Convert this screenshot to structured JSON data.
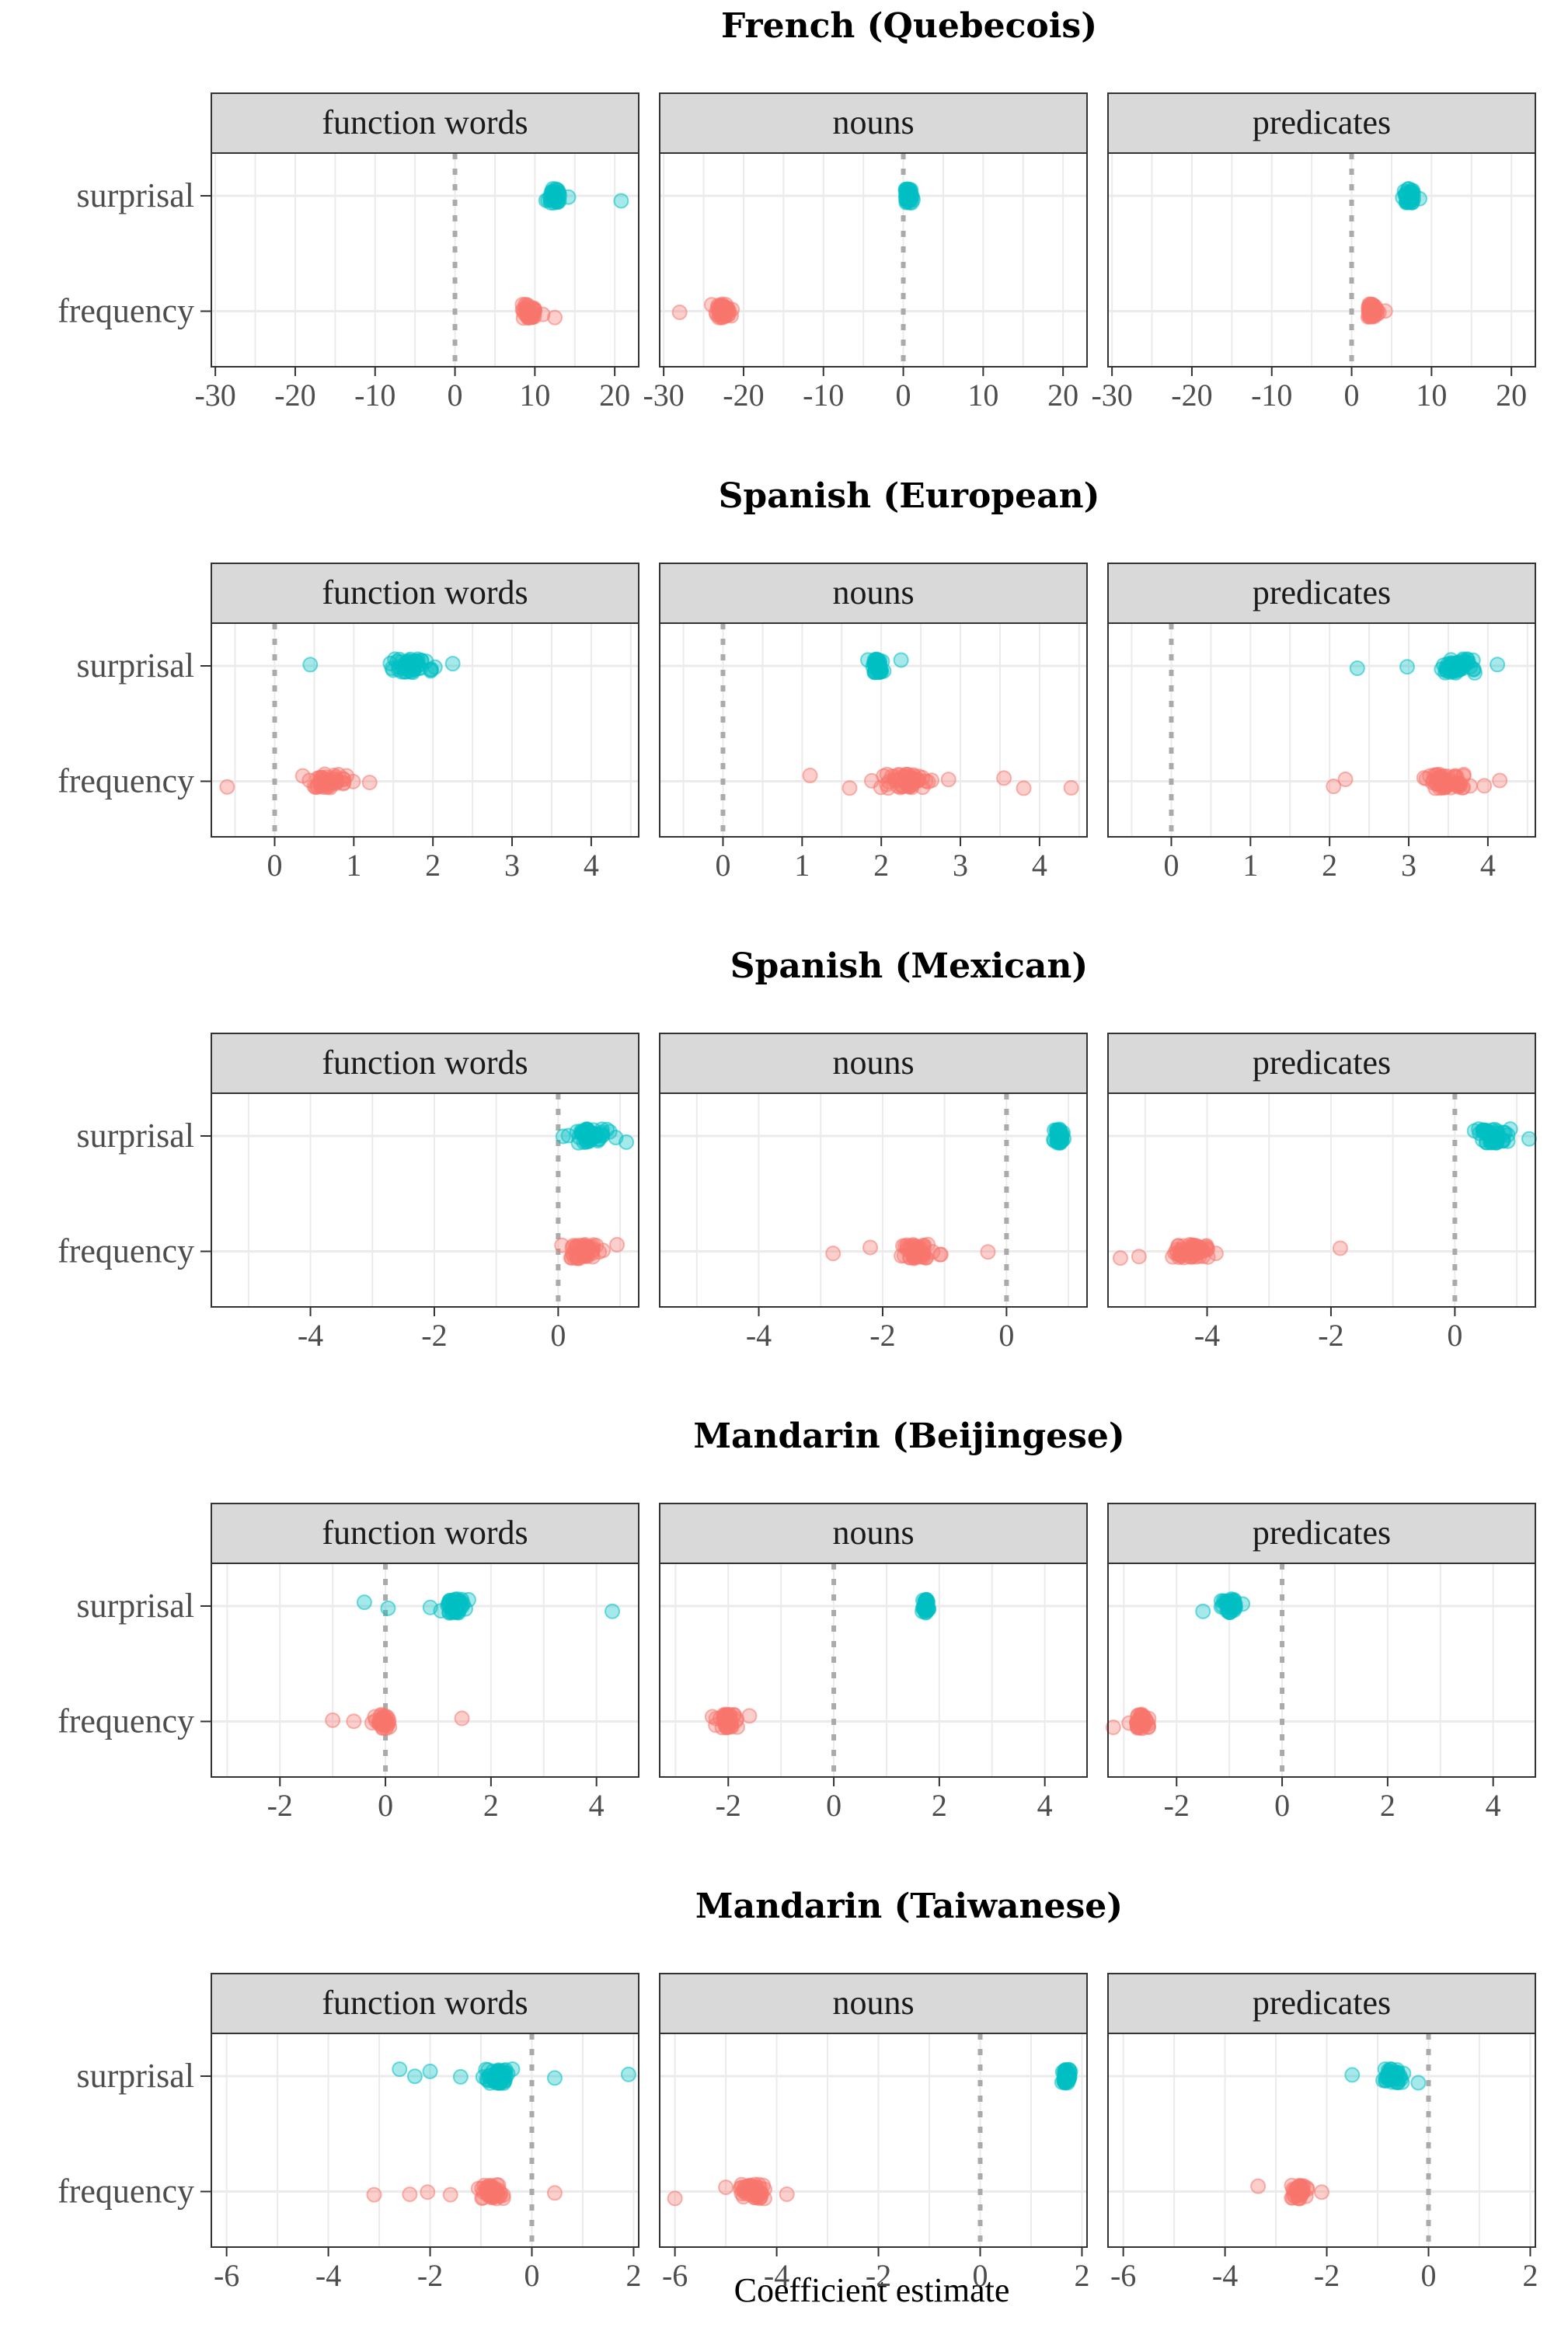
{
  "colors": {
    "surprisal": "#00BFC4",
    "frequency": "#F8766D",
    "zero_line": "#aaaaaa",
    "strip": "#d9d9d9",
    "panel_border": "#333333",
    "grid": "#ebebeb"
  },
  "chart_data": {
    "type": "scatter",
    "xlabel": "Coefficient estimate",
    "facet_labels": [
      "function words",
      "nouns",
      "predicates"
    ],
    "row_categories": [
      "surprisal",
      "frequency"
    ],
    "grid": true,
    "panels": [
      {
        "title": "French (Quebecois)",
        "xlim": [
          -30.5,
          23
        ],
        "ticks": [
          -30,
          -20,
          -10,
          0,
          10,
          20
        ],
        "tick_labels": [
          "-30",
          "-20",
          "-10",
          "0",
          "10",
          "20"
        ],
        "facets": [
          {
            "name": "function words",
            "surprisal": {
              "center": 12.5,
              "spread": 0.6,
              "n": 40,
              "outliers": [
                14.2,
                20.8
              ]
            },
            "frequency": {
              "center": 9.3,
              "spread": 0.6,
              "n": 40,
              "outliers": [
                11.0,
                12.5
              ]
            }
          },
          {
            "name": "nouns",
            "surprisal": {
              "center": 0.6,
              "spread": 0.35,
              "n": 40,
              "outliers": []
            },
            "frequency": {
              "center": -22.5,
              "spread": 0.7,
              "n": 40,
              "outliers": [
                -28.0,
                -24.0
              ]
            }
          },
          {
            "name": "predicates",
            "surprisal": {
              "center": 7.2,
              "spread": 0.5,
              "n": 40,
              "outliers": [
                8.5
              ]
            },
            "frequency": {
              "center": 2.5,
              "spread": 0.5,
              "n": 40,
              "outliers": [
                4.2
              ]
            }
          }
        ]
      },
      {
        "title": "Spanish (European)",
        "xlim": [
          -0.8,
          4.6
        ],
        "ticks": [
          0,
          1,
          2,
          3,
          4
        ],
        "tick_labels": [
          "0",
          "1",
          "2",
          "3",
          "4"
        ],
        "facets": [
          {
            "name": "function words",
            "surprisal": {
              "center": 1.72,
              "spread": 0.16,
              "n": 50,
              "outliers": [
                0.45,
                2.25
              ]
            },
            "frequency": {
              "center": 0.68,
              "spread": 0.16,
              "n": 50,
              "outliers": [
                -0.6,
                1.2
              ]
            }
          },
          {
            "name": "nouns",
            "surprisal": {
              "center": 1.95,
              "spread": 0.05,
              "n": 40,
              "outliers": [
                2.25
              ]
            },
            "frequency": {
              "center": 2.3,
              "spread": 0.18,
              "n": 50,
              "outliers": [
                1.1,
                1.6,
                2.85,
                3.55,
                3.8,
                4.4
              ]
            }
          },
          {
            "name": "predicates",
            "surprisal": {
              "center": 3.62,
              "spread": 0.16,
              "n": 50,
              "outliers": [
                2.35,
                2.98,
                4.12
              ]
            },
            "frequency": {
              "center": 3.45,
              "spread": 0.22,
              "n": 60,
              "outliers": [
                2.05,
                2.2,
                4.15
              ]
            }
          }
        ]
      },
      {
        "title": "Spanish (Mexican)",
        "xlim": [
          -5.6,
          1.3
        ],
        "ticks": [
          -4,
          -2,
          0
        ],
        "tick_labels": [
          "-4",
          "-2",
          "0"
        ],
        "facets": [
          {
            "name": "function words",
            "surprisal": {
              "center": 0.5,
              "spread": 0.2,
              "n": 50,
              "outliers": [
                1.1
              ]
            },
            "frequency": {
              "center": 0.42,
              "spread": 0.18,
              "n": 50,
              "outliers": [
                0.95
              ]
            }
          },
          {
            "name": "nouns",
            "surprisal": {
              "center": 0.85,
              "spread": 0.06,
              "n": 40,
              "outliers": []
            },
            "frequency": {
              "center": -1.45,
              "spread": 0.2,
              "n": 50,
              "outliers": [
                -2.8,
                -2.2,
                -0.3
              ]
            }
          },
          {
            "name": "predicates",
            "surprisal": {
              "center": 0.6,
              "spread": 0.18,
              "n": 50,
              "outliers": [
                1.2
              ]
            },
            "frequency": {
              "center": -4.25,
              "spread": 0.22,
              "n": 60,
              "outliers": [
                -5.4,
                -5.1,
                -1.85
              ]
            }
          }
        ]
      },
      {
        "title": "Mandarin (Beijingese)",
        "xlim": [
          -3.3,
          4.8
        ],
        "ticks": [
          -2,
          0,
          2,
          4
        ],
        "tick_labels": [
          "-2",
          "0",
          "2",
          "4"
        ],
        "facets": [
          {
            "name": "function words",
            "surprisal": {
              "center": 1.35,
              "spread": 0.15,
              "n": 50,
              "outliers": [
                -0.4,
                0.05,
                0.85,
                4.3
              ]
            },
            "frequency": {
              "center": -0.05,
              "spread": 0.1,
              "n": 40,
              "outliers": [
                -1.0,
                -0.6,
                1.45
              ]
            }
          },
          {
            "name": "nouns",
            "surprisal": {
              "center": 1.75,
              "spread": 0.03,
              "n": 40,
              "outliers": []
            },
            "frequency": {
              "center": -2.0,
              "spread": 0.12,
              "n": 40,
              "outliers": [
                -2.3,
                -1.6
              ]
            }
          },
          {
            "name": "predicates",
            "surprisal": {
              "center": -1.0,
              "spread": 0.12,
              "n": 40,
              "outliers": [
                -1.5,
                -0.75
              ]
            },
            "frequency": {
              "center": -2.65,
              "spread": 0.1,
              "n": 40,
              "outliers": [
                -3.2,
                -2.9
              ]
            }
          }
        ]
      },
      {
        "title": "Mandarin (Taiwanese)",
        "xlim": [
          -6.3,
          2.1
        ],
        "ticks": [
          -6,
          -4,
          -2,
          0,
          2
        ],
        "tick_labels": [
          "-6",
          "-4",
          "-2",
          "0",
          "2"
        ],
        "facets": [
          {
            "name": "function words",
            "surprisal": {
              "center": -0.65,
              "spread": 0.18,
              "n": 50,
              "outliers": [
                -2.6,
                -2.3,
                -2.0,
                -1.4,
                0.45,
                1.9
              ]
            },
            "frequency": {
              "center": -0.8,
              "spread": 0.15,
              "n": 50,
              "outliers": [
                -3.1,
                -2.4,
                -2.05,
                -1.6,
                0.45
              ]
            }
          },
          {
            "name": "nouns",
            "surprisal": {
              "center": 1.7,
              "spread": 0.05,
              "n": 40,
              "outliers": []
            },
            "frequency": {
              "center": -4.45,
              "spread": 0.18,
              "n": 50,
              "outliers": [
                -6.0,
                -5.0,
                -3.8
              ]
            }
          },
          {
            "name": "predicates",
            "surprisal": {
              "center": -0.7,
              "spread": 0.12,
              "n": 40,
              "outliers": [
                -1.5,
                -0.2
              ]
            },
            "frequency": {
              "center": -2.55,
              "spread": 0.12,
              "n": 40,
              "outliers": [
                -3.35,
                -2.1
              ]
            }
          }
        ]
      }
    ]
  }
}
